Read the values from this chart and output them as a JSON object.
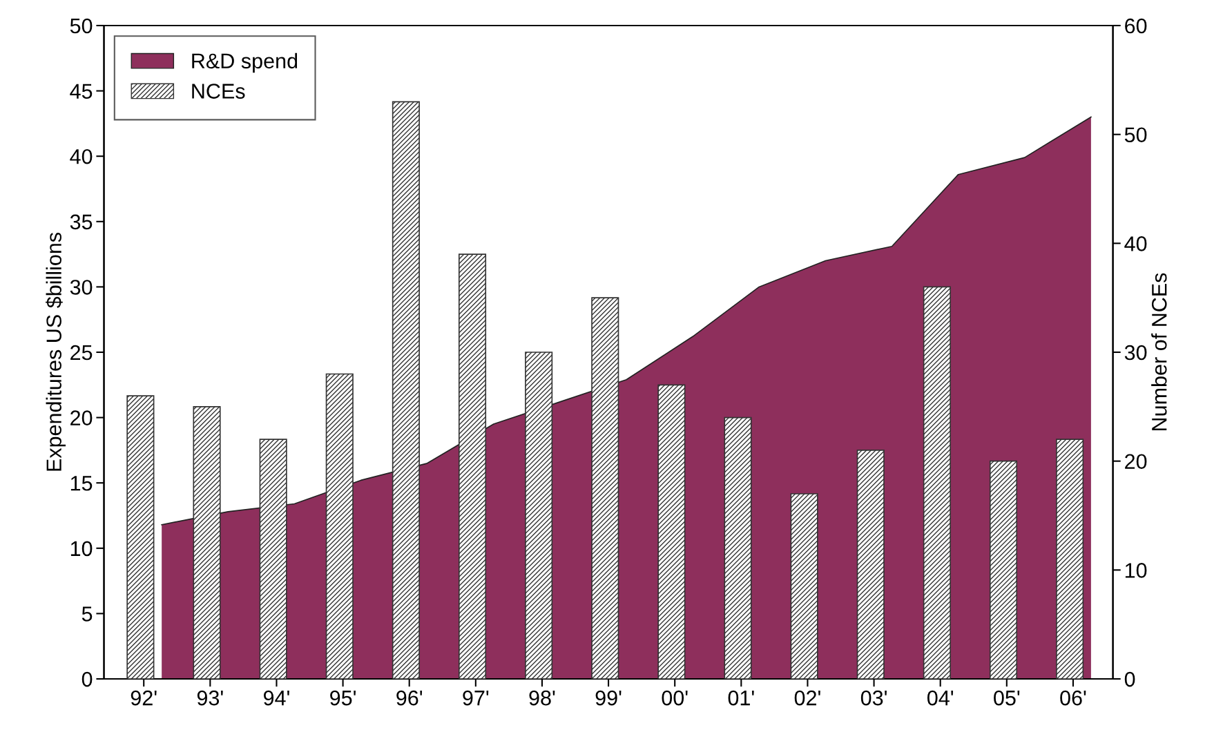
{
  "chart_data": {
    "type": "bar",
    "categories": [
      "92'",
      "93'",
      "94'",
      "95'",
      "96'",
      "97'",
      "98'",
      "99'",
      "00'",
      "01'",
      "02'",
      "03'",
      "04'",
      "05'",
      "06'"
    ],
    "series": [
      {
        "name": "R&D spend",
        "type": "area",
        "color": "#8e2f5c",
        "values": [
          11.8,
          12.8,
          13.4,
          15.2,
          16.5,
          19.5,
          21.2,
          22.9,
          26.2,
          30.0,
          32.0,
          33.1,
          38.6,
          39.9,
          43.0
        ]
      },
      {
        "name": "NCEs",
        "axis": "y2",
        "color": "#333333",
        "values": [
          26,
          25,
          22,
          28,
          53,
          39,
          30,
          35,
          27,
          24,
          17,
          21,
          36,
          20,
          22
        ]
      }
    ],
    "ylabel": "Expenditures US $billions",
    "y2label": "Number of NCEs",
    "ylim": [
      0,
      50
    ],
    "yticks": [
      0,
      5,
      10,
      15,
      20,
      25,
      30,
      35,
      40,
      45,
      50
    ],
    "y2lim": [
      0,
      60
    ],
    "y2ticks": [
      0,
      10,
      20,
      30,
      40,
      50,
      60
    ],
    "legend": "top left",
    "grid": false
  }
}
